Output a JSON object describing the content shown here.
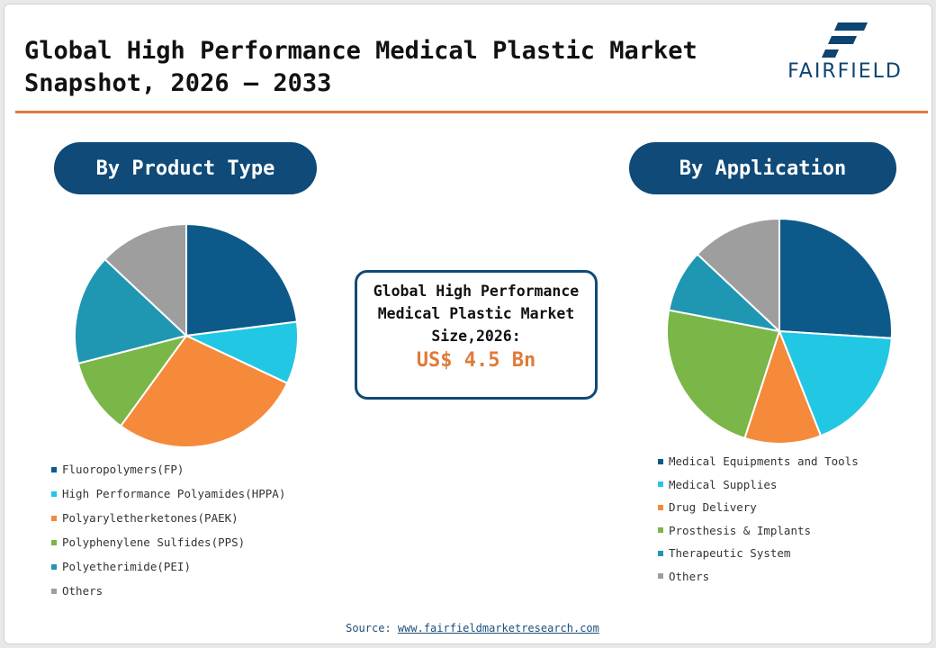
{
  "header": {
    "title": "Global High Performance Medical Plastic Market Snapshot, 2026 – 2033",
    "logo_text": "FAIRFIELD"
  },
  "summary": {
    "text": "Global High Performance Medical Plastic Market Size,2026:",
    "value": "US$ 4.5 Bn"
  },
  "source": {
    "label": "Source:",
    "link": "www.fairfieldmarketresearch.com"
  },
  "colors": {
    "navy": "#0f4a78",
    "accent": "#e07b39"
  },
  "chart_data": [
    {
      "type": "pie",
      "title": "By Product Type",
      "legend_placement": "bottom",
      "series": [
        {
          "label": "Fluoropolymers(FP)",
          "value": 23,
          "color": "#0d5a8a"
        },
        {
          "label": "High Performance Polyamides(HPPA)",
          "value": 9,
          "color": "#22c7e4"
        },
        {
          "label": "Polyaryletherketones(PAEK)",
          "value": 28,
          "color": "#f58a3b"
        },
        {
          "label": "Polyphenylene Sulfides(PPS)",
          "value": 11,
          "color": "#7ab648"
        },
        {
          "label": "Polyetherimide(PEI)",
          "value": 16,
          "color": "#1f97b3"
        },
        {
          "label": "Others",
          "value": 13,
          "color": "#9e9e9e"
        }
      ]
    },
    {
      "type": "pie",
      "title": "By Application",
      "legend_placement": "bottom",
      "series": [
        {
          "label": "Medical Equipments and Tools",
          "value": 26,
          "color": "#0d5a8a"
        },
        {
          "label": "Medical Supplies",
          "value": 18,
          "color": "#22c7e4"
        },
        {
          "label": "Drug Delivery",
          "value": 11,
          "color": "#f58a3b"
        },
        {
          "label": "Prosthesis & Implants",
          "value": 23,
          "color": "#7ab648"
        },
        {
          "label": "Therapeutic System",
          "value": 9,
          "color": "#1f97b3"
        },
        {
          "label": "Others",
          "value": 13,
          "color": "#9e9e9e"
        }
      ]
    }
  ]
}
